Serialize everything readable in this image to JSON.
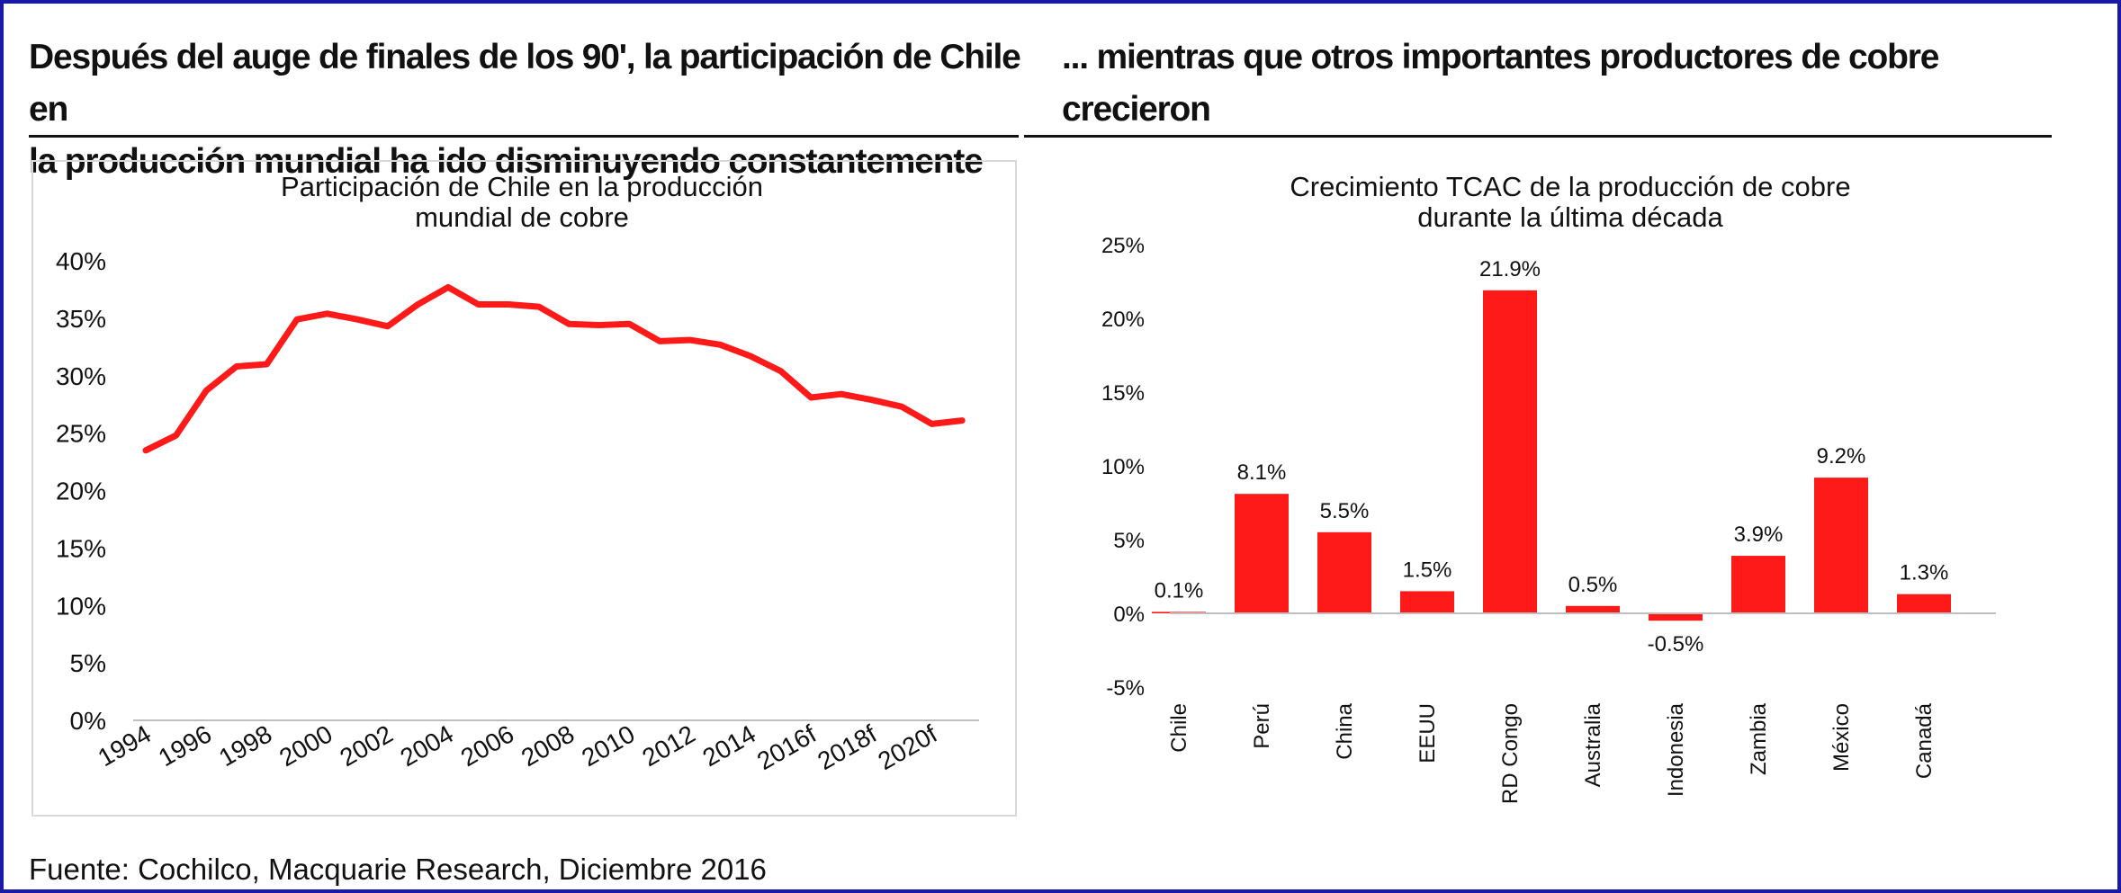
{
  "left_heading": "Después del auge de finales de los 90', la participación de Chile en\nla producción mundial ha ido disminuyendo constantemente",
  "right_heading": "... mientras que otros importantes productores de cobre\ncrecieron",
  "source": "Fuente: Cochilco, Macquarie Research, Diciembre 2016",
  "colors": {
    "series": "#ff1a1a",
    "frame": "#1a1aa8",
    "rule": "#111111",
    "zero_line": "#bfbfbf"
  },
  "chart_data": [
    {
      "type": "line",
      "title": "Participación de Chile en la producción\nmundial de cobre",
      "xlabel": "",
      "ylabel": "",
      "x": [
        "1994",
        "1995",
        "1996",
        "1997",
        "1998",
        "1999",
        "2000",
        "2001",
        "2002",
        "2003",
        "2004",
        "2005",
        "2006",
        "2007",
        "2008",
        "2009",
        "2010",
        "2011",
        "2012",
        "2013",
        "2014",
        "2015",
        "2016f",
        "2017f",
        "2018f",
        "2019f",
        "2020f",
        "2021f"
      ],
      "x_tick_labels": [
        "1994",
        "1996",
        "1998",
        "2000",
        "2002",
        "2004",
        "2006",
        "2008",
        "2010",
        "2012",
        "2014",
        "2016f",
        "2018f",
        "2020f"
      ],
      "series": [
        {
          "values": [
            23.5,
            24.8,
            28.7,
            30.8,
            31.0,
            34.9,
            35.4,
            34.9,
            34.3,
            36.2,
            37.7,
            36.2,
            36.2,
            36.0,
            34.5,
            34.4,
            34.5,
            33.0,
            33.1,
            32.7,
            31.7,
            30.4,
            28.1,
            28.4,
            27.9,
            27.3,
            25.8,
            26.1
          ]
        }
      ],
      "ylim": [
        0,
        40
      ],
      "y_ticks": [
        0,
        5,
        10,
        15,
        20,
        25,
        30,
        35,
        40
      ],
      "y_tick_labels": [
        "0%",
        "5%",
        "10%",
        "15%",
        "20%",
        "25%",
        "30%",
        "35%",
        "40%"
      ],
      "grid": false
    },
    {
      "type": "bar",
      "title": "Crecimiento TCAC de la producción de cobre\ndurante la última década",
      "xlabel": "",
      "ylabel": "",
      "categories": [
        "Chile",
        "Perú",
        "China",
        "EEUU",
        "RD Congo",
        "Australia",
        "Indonesia",
        "Zambia",
        "México",
        "Canadá"
      ],
      "values": [
        0.1,
        8.1,
        5.5,
        1.5,
        21.9,
        0.5,
        -0.5,
        3.9,
        9.2,
        1.3
      ],
      "data_labels": [
        "0.1%",
        "8.1%",
        "5.5%",
        "1.5%",
        "21.9%",
        "0.5%",
        "-0.5%",
        "3.9%",
        "9.2%",
        "1.3%"
      ],
      "ylim": [
        -5,
        25
      ],
      "y_ticks": [
        -5,
        0,
        5,
        10,
        15,
        20,
        25
      ],
      "y_tick_labels": [
        "-5%",
        "0%",
        "5%",
        "10%",
        "15%",
        "20%",
        "25%"
      ],
      "grid": false
    }
  ]
}
